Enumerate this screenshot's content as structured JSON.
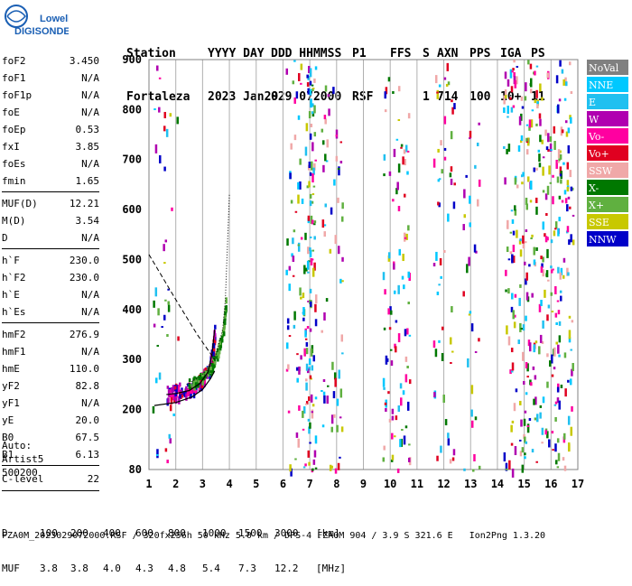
{
  "header": {
    "line1": [
      "Station",
      "YYYY DAY",
      "DDD HHMMSS",
      "P1",
      "FFS",
      "S",
      "AXN",
      "PPS",
      "IGA",
      "PS"
    ],
    "line2": [
      "Fortaleza",
      "2023 Jan29",
      "029 072000",
      "RSF",
      "",
      "1",
      "714",
      "100",
      "10+",
      "11"
    ]
  },
  "logo": {
    "top": "Lowell",
    "bottom": "DIGISONDE"
  },
  "params": {
    "group1": [
      {
        "label": "foF2",
        "value": "3.450"
      },
      {
        "label": "foF1",
        "value": "N/A"
      },
      {
        "label": "foF1p",
        "value": "N/A"
      },
      {
        "label": "foE",
        "value": "N/A"
      },
      {
        "label": "foEp",
        "value": "0.53"
      },
      {
        "label": "fxI",
        "value": "3.85"
      },
      {
        "label": "foEs",
        "value": "N/A"
      },
      {
        "label": "fmin",
        "value": "1.65"
      }
    ],
    "group2": [
      {
        "label": "MUF(D)",
        "value": "12.21"
      },
      {
        "label": "M(D)",
        "value": "3.54"
      },
      {
        "label": "D",
        "value": "N/A"
      }
    ],
    "group3": [
      {
        "label": "h`F",
        "value": "230.0"
      },
      {
        "label": "h`F2",
        "value": "230.0"
      },
      {
        "label": "h`E",
        "value": "N/A"
      },
      {
        "label": "h`Es",
        "value": "N/A"
      }
    ],
    "group4": [
      {
        "label": "hmF2",
        "value": "276.9"
      },
      {
        "label": "hmF1",
        "value": "N/A"
      },
      {
        "label": "hmE",
        "value": "110.0"
      },
      {
        "label": "yF2",
        "value": "82.8"
      },
      {
        "label": "yF1",
        "value": "N/A"
      },
      {
        "label": "yE",
        "value": "20.0"
      },
      {
        "label": "B0",
        "value": "67.5"
      },
      {
        "label": "B1",
        "value": "6.13"
      }
    ],
    "clevel": {
      "label": "C-level",
      "value": "22"
    }
  },
  "auto": [
    "Auto:",
    "Artist5",
    "500200"
  ],
  "legend": [
    {
      "label": "NoVal",
      "color": "#808080"
    },
    {
      "label": "NNE",
      "color": "#00c8ff"
    },
    {
      "label": "E",
      "color": "#20c0f0"
    },
    {
      "label": "W",
      "color": "#b000b0"
    },
    {
      "label": "Vo-",
      "color": "#ff00a0"
    },
    {
      "label": "Vo+",
      "color": "#e00020"
    },
    {
      "label": "SSW",
      "color": "#f0a8a8"
    },
    {
      "label": "X-",
      "color": "#007800"
    },
    {
      "label": "X+",
      "color": "#60b040"
    },
    {
      "label": "SSE",
      "color": "#c8c800"
    },
    {
      "label": "NNW",
      "color": "#0000c8"
    }
  ],
  "bottom_table": {
    "d_label": "D",
    "d_values": [
      "100",
      "200",
      "400",
      "600",
      "800",
      "1000",
      "1500",
      "3000"
    ],
    "d_unit": "[km]",
    "muf_label": "MUF",
    "muf_values": [
      "3.8",
      "3.8",
      "4.0",
      "4.3",
      "4.8",
      "5.4",
      "7.3",
      "12.2"
    ],
    "muf_unit": "[MHz]"
  },
  "footer": "FZA0M_2023029072000.RSF / 320fx256h 50 kHz 5.0 km / DPS-4 FZA0M 904 / 3.9 S 321.6 E   Ion2Png 1.3.20",
  "chart_data": {
    "type": "scatter",
    "title": "",
    "xlabel": "",
    "ylabel": "",
    "xlim": [
      1,
      17
    ],
    "ylim": [
      80,
      900
    ],
    "x_ticks": [
      1,
      2,
      3,
      4,
      5,
      6,
      7,
      8,
      9,
      10,
      11,
      12,
      13,
      14,
      15,
      16,
      17
    ],
    "y_ticks": [
      80,
      200,
      300,
      400,
      500,
      600,
      700,
      800,
      900
    ],
    "trace_freq_MHz": [
      1.65,
      2.0,
      2.5,
      2.9,
      3.2,
      3.35,
      3.45
    ],
    "trace_height_km": [
      230,
      232,
      238,
      252,
      275,
      310,
      360
    ],
    "profile_freq_MHz": [
      1.2,
      2.0,
      2.6,
      3.0,
      3.3,
      3.45
    ],
    "profile_height_km": [
      208,
      214,
      225,
      240,
      262,
      277
    ],
    "x_trace_freq_MHz": [
      2.4,
      2.8,
      3.2,
      3.5,
      3.75,
      3.85
    ],
    "x_trace_height_km": [
      250,
      262,
      280,
      310,
      360,
      420
    ]
  }
}
